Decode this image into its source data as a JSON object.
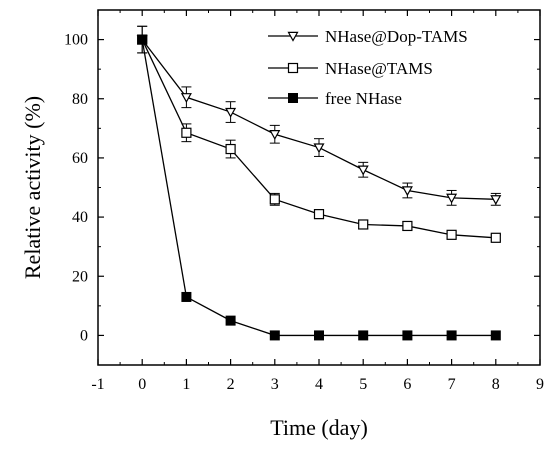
{
  "chart_data": {
    "type": "line",
    "xlabel": "Time (day)",
    "ylabel": "Relative activity (%)",
    "xlim": [
      -1,
      9
    ],
    "ylim": [
      -10,
      110
    ],
    "xticks": [
      -1,
      0,
      1,
      2,
      3,
      4,
      5,
      6,
      7,
      8,
      9
    ],
    "yticks": [
      0,
      20,
      40,
      60,
      80,
      100
    ],
    "x": [
      0,
      1,
      2,
      3,
      4,
      5,
      6,
      7,
      8
    ],
    "grid": false,
    "legend_position": "top-right",
    "series": [
      {
        "name": "NHase@Dop-TAMS",
        "marker": "triangle-down-open",
        "values": [
          100,
          80.5,
          75.5,
          68,
          63.5,
          56,
          49,
          46.5,
          46
        ],
        "errors": [
          4.5,
          3.5,
          3.5,
          3,
          3,
          2.5,
          2.5,
          2.5,
          2
        ]
      },
      {
        "name": "NHase@TAMS",
        "marker": "square-open",
        "values": [
          100,
          68.5,
          63,
          46,
          41,
          37.5,
          37,
          34,
          33
        ],
        "errors": [
          4.5,
          3,
          3,
          2,
          1.5,
          1.5,
          1.5,
          1,
          1
        ]
      },
      {
        "name": "free NHase",
        "marker": "square-filled",
        "values": [
          100,
          13,
          5,
          0,
          0,
          0,
          0,
          0,
          0
        ],
        "errors": [
          0,
          0,
          0,
          0,
          0,
          0,
          0,
          0,
          0
        ]
      }
    ]
  }
}
